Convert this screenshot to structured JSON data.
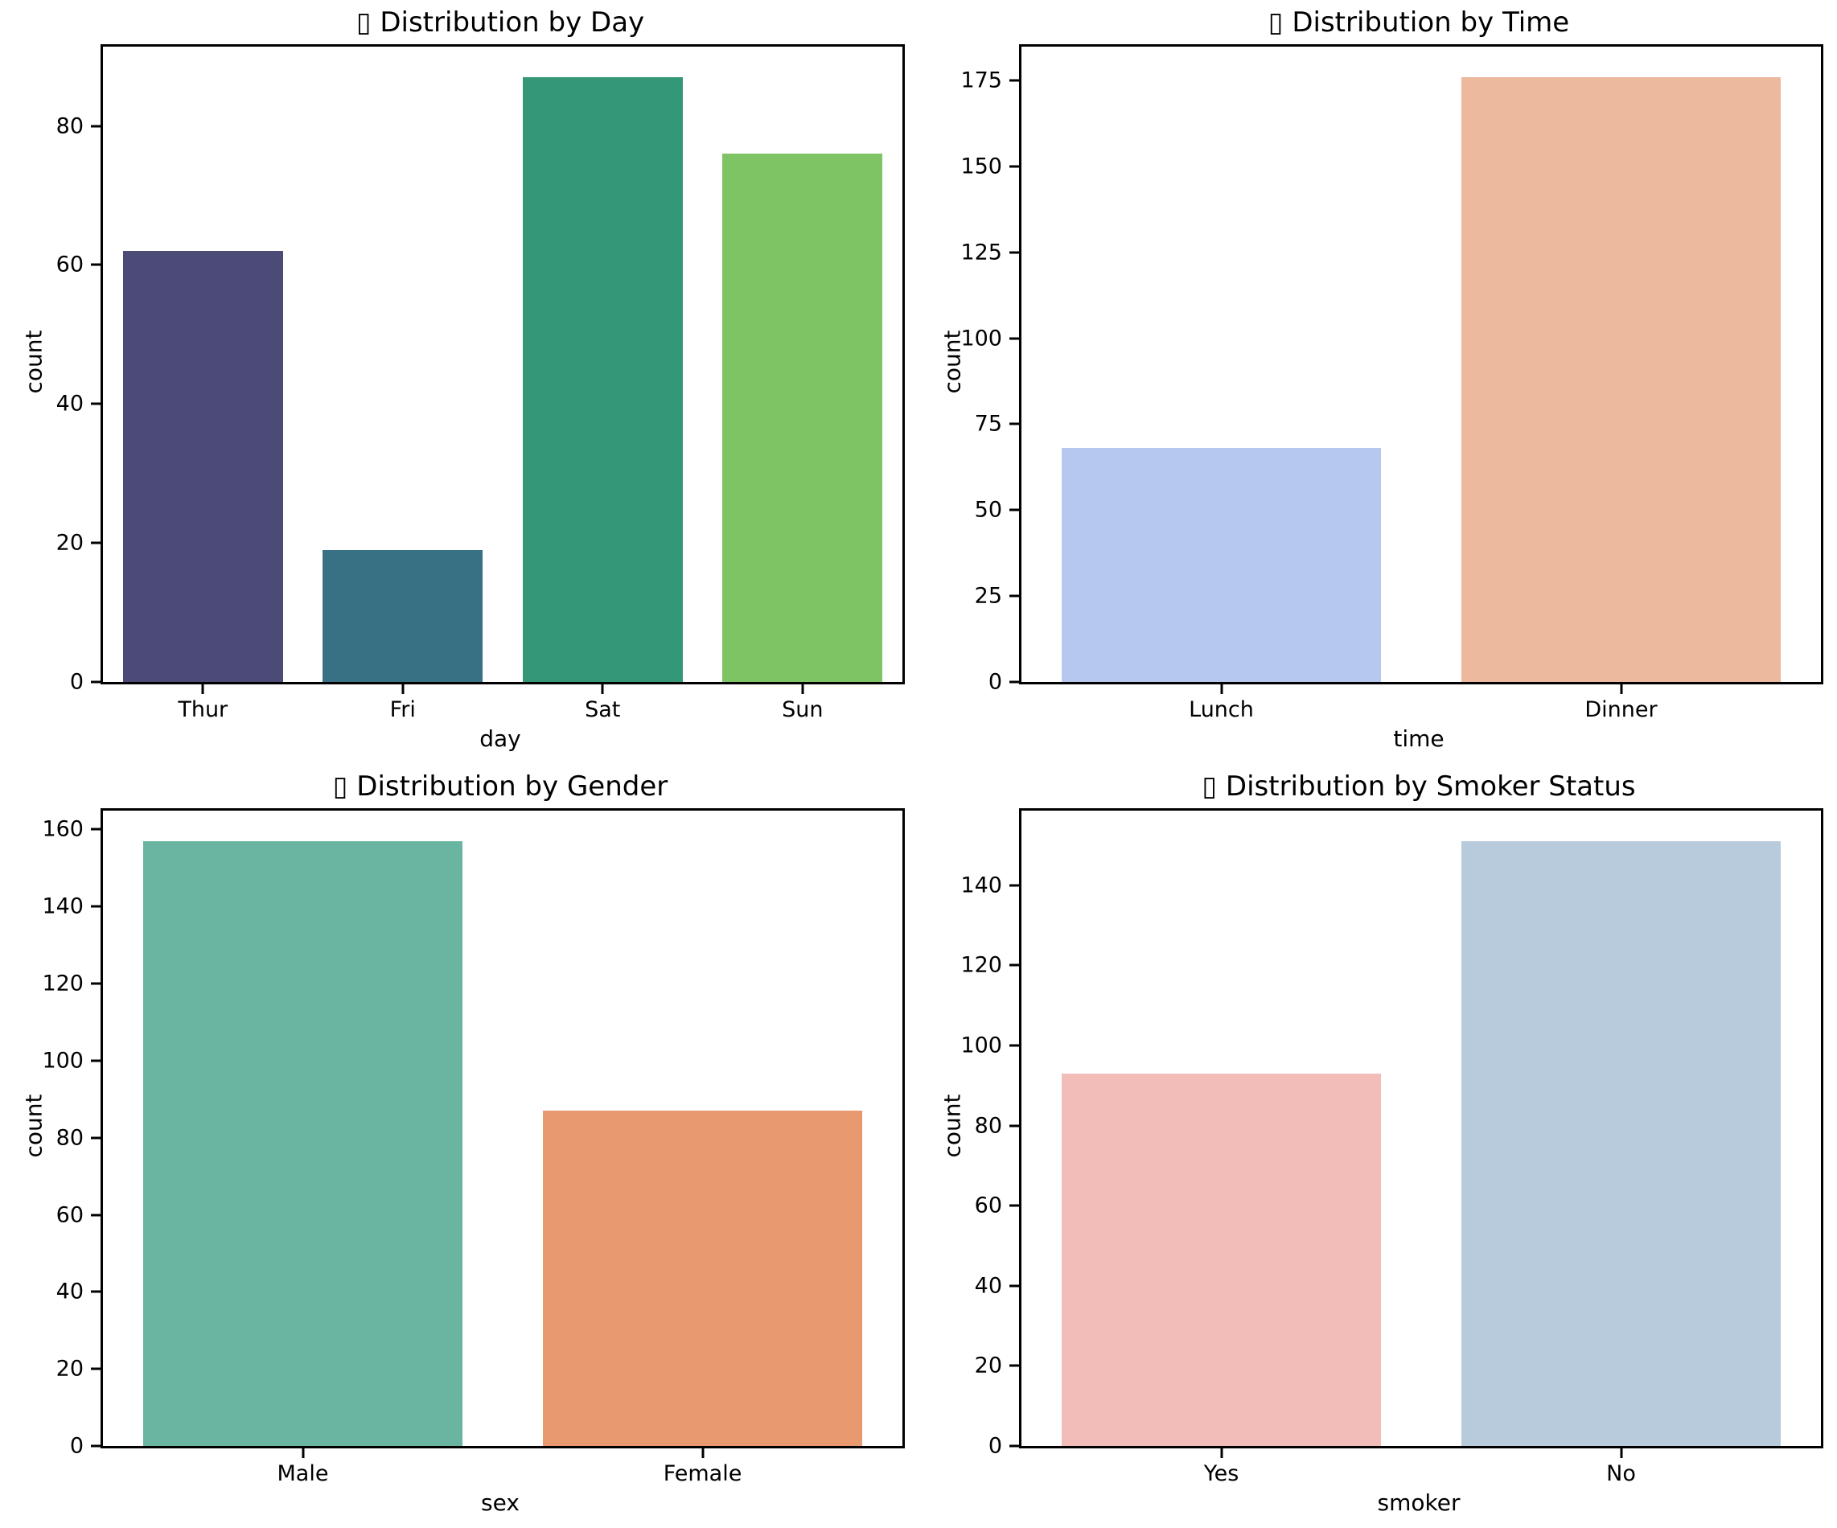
{
  "figure": {
    "background": "#ffffff",
    "layout": "2x2 subplots",
    "note_glyph": "missing-emoji-tofu-box in each title"
  },
  "chart_data": [
    {
      "type": "bar",
      "title": "▯ Distribution by Day",
      "xlabel": "day",
      "ylabel": "count",
      "categories": [
        "Thur",
        "Fri",
        "Sat",
        "Sun"
      ],
      "values": [
        62,
        19,
        87,
        76
      ],
      "bar_colors": [
        "#4c4a77",
        "#377183",
        "#349878",
        "#7ec364"
      ],
      "yticks": [
        0,
        20,
        40,
        60,
        80
      ],
      "ylim": [
        0,
        91.4
      ],
      "grid": false,
      "legend": "none"
    },
    {
      "type": "bar",
      "title": "▯ Distribution by Time",
      "xlabel": "time",
      "ylabel": "count",
      "categories": [
        "Lunch",
        "Dinner"
      ],
      "values": [
        68,
        176
      ],
      "bar_colors": [
        "#b7c8ee",
        "#ecb89e"
      ],
      "yticks": [
        0,
        25,
        50,
        75,
        100,
        125,
        150,
        175
      ],
      "ylim": [
        0,
        184.8
      ],
      "grid": false,
      "legend": "none"
    },
    {
      "type": "bar",
      "title": "▯ Distribution by Gender",
      "xlabel": "sex",
      "ylabel": "count",
      "categories": [
        "Male",
        "Female"
      ],
      "values": [
        157,
        87
      ],
      "bar_colors": [
        "#6ab5a1",
        "#e8996f"
      ],
      "yticks": [
        0,
        20,
        40,
        60,
        80,
        100,
        120,
        140,
        160
      ],
      "ylim": [
        0,
        164.9
      ],
      "grid": false,
      "legend": "none"
    },
    {
      "type": "bar",
      "title": "▯ Distribution by Smoker Status",
      "xlabel": "smoker",
      "ylabel": "count",
      "categories": [
        "Yes",
        "No"
      ],
      "values": [
        93,
        151
      ],
      "bar_colors": [
        "#f2bcb9",
        "#b8cbdc"
      ],
      "yticks": [
        0,
        20,
        40,
        60,
        80,
        100,
        120,
        140
      ],
      "ylim": [
        0,
        158.6
      ],
      "grid": false,
      "legend": "none"
    }
  ]
}
